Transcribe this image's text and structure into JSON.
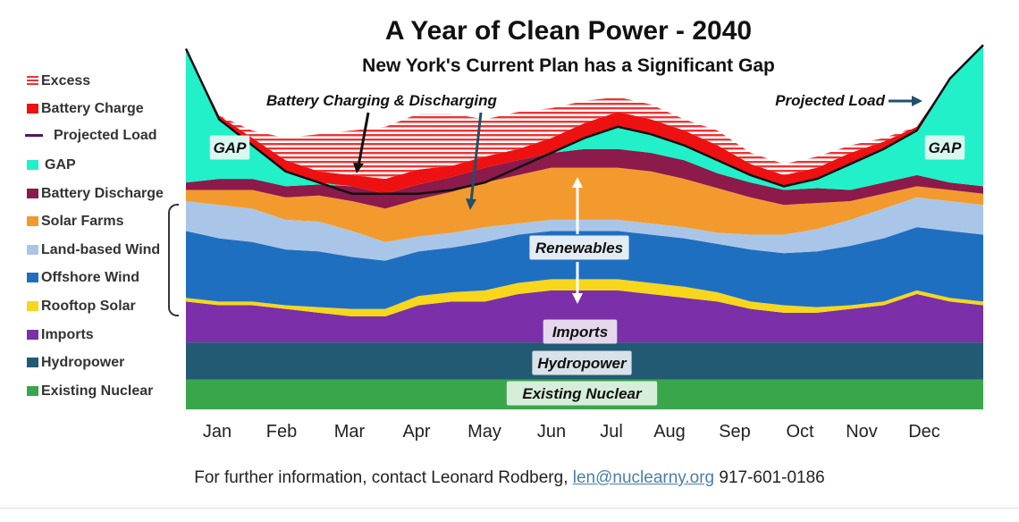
{
  "header": {
    "title": "A Year of Clean Power - 2040",
    "subtitle": "New York's Current Plan has a Significant Gap"
  },
  "legend": [
    {
      "label": "Excess",
      "color": "#ee3333",
      "style": "hatch"
    },
    {
      "label": "Battery Charge",
      "color": "#ee1111",
      "style": "box"
    },
    {
      "label": "Projected Load",
      "color": "#4a1a6a",
      "style": "line"
    },
    {
      "label": "GAP",
      "color": "#22f0c8",
      "style": "box"
    },
    {
      "label": "Battery Discharge",
      "color": "#8c1a4a",
      "style": "box"
    },
    {
      "label": "Solar Farms",
      "color": "#f39a2e",
      "style": "box"
    },
    {
      "label": "Land-based Wind",
      "color": "#a9c6e8",
      "style": "box"
    },
    {
      "label": "Offshore Wind",
      "color": "#1f6fc1",
      "style": "box"
    },
    {
      "label": "Rooftop Solar",
      "color": "#f7d61c",
      "style": "box"
    },
    {
      "label": "Imports",
      "color": "#7b2fa8",
      "style": "box"
    },
    {
      "label": "Hydropower",
      "color": "#225a73",
      "style": "box"
    },
    {
      "label": "Existing Nuclear",
      "color": "#3aa64b",
      "style": "box"
    }
  ],
  "annotations": {
    "gap_left": "GAP",
    "gap_right": "GAP",
    "battery": "Battery Charging  & Discharging",
    "projected_load": "Projected Load",
    "renewables": "Renewables",
    "imports": "Imports",
    "hydropower": "Hydropower",
    "nuclear": "Existing Nuclear"
  },
  "footer": {
    "text": "For further information, contact Leonard Rodberg,",
    "email": "len@nuclearny.org",
    "phone": "917-601-0186"
  },
  "chart_data": {
    "type": "area",
    "title": "A Year of Clean Power - 2040",
    "subtitle": "New York's Current Plan has a Significant Gap",
    "xlabel": "",
    "ylabel": "",
    "x_unit": "month of year",
    "y_unit": "relative output (0 = baseline, 100 = peak projected load)",
    "categories": [
      "Jan",
      "Feb",
      "Mar",
      "Apr",
      "May",
      "Jun",
      "Jul",
      "Aug",
      "Sep",
      "Oct",
      "Nov",
      "Dec"
    ],
    "x": [
      0,
      0.5,
      1,
      1.5,
      2,
      2.5,
      3,
      3.5,
      4,
      4.5,
      5,
      5.5,
      6,
      6.5,
      7,
      7.5,
      8,
      8.5,
      9,
      9.5,
      10,
      10.5,
      11,
      11.5,
      12
    ],
    "ylim": [
      0,
      100
    ],
    "stack_order": [
      "Existing Nuclear",
      "Hydropower",
      "Imports",
      "Rooftop Solar",
      "Offshore Wind",
      "Land-based Wind",
      "Solar Farms",
      "Battery Discharge"
    ],
    "series": [
      {
        "name": "Existing Nuclear",
        "values": [
          8,
          8,
          8,
          8,
          8,
          8,
          8,
          8,
          8,
          8,
          8,
          8,
          8,
          8,
          8,
          8,
          8,
          8,
          8,
          8,
          8,
          8,
          8,
          8,
          8
        ]
      },
      {
        "name": "Hydropower",
        "values": [
          10,
          10,
          10,
          10,
          10,
          10,
          10,
          10,
          10,
          10,
          10,
          10,
          10,
          10,
          10,
          10,
          10,
          10,
          10,
          10,
          10,
          10,
          10,
          10,
          10
        ]
      },
      {
        "name": "Imports",
        "values": [
          11,
          10,
          10,
          9,
          8,
          7,
          7,
          10,
          11,
          11,
          13,
          14,
          14,
          14,
          13,
          12,
          11,
          9,
          8,
          8,
          9,
          10,
          13,
          11,
          10
        ]
      },
      {
        "name": "Rooftop Solar",
        "values": [
          1,
          1,
          1,
          1,
          1.5,
          2,
          2,
          2.5,
          2.5,
          3,
          3,
          3,
          3,
          3,
          3,
          3,
          2.5,
          2,
          2,
          1.5,
          1,
          1,
          1,
          1,
          1
        ]
      },
      {
        "name": "Offshore Wind",
        "values": [
          18,
          17,
          16,
          15,
          15,
          14,
          13,
          12,
          12,
          13,
          13,
          13,
          13,
          13,
          13,
          13,
          13,
          14,
          14,
          15,
          16,
          17,
          17,
          18,
          18
        ]
      },
      {
        "name": "Land-based Wind",
        "values": [
          8,
          9,
          9,
          8,
          8,
          7,
          5,
          4,
          4,
          4,
          3,
          3,
          3,
          3,
          3,
          3,
          3,
          4,
          5,
          6,
          7,
          8,
          8,
          8,
          8
        ]
      },
      {
        "name": "Solar Farms",
        "values": [
          3,
          4,
          5,
          6,
          7,
          8,
          9,
          10,
          11,
          12,
          13,
          14,
          14,
          14,
          14,
          13,
          12,
          10,
          8,
          7,
          5,
          4,
          3,
          3,
          3
        ]
      },
      {
        "name": "Battery Discharge",
        "values": [
          2,
          3,
          3,
          3,
          3,
          4,
          4,
          4,
          4,
          4,
          4,
          4,
          5,
          5,
          5,
          5,
          4,
          4,
          4,
          4,
          3,
          3,
          3,
          2,
          2
        ]
      },
      {
        "name": "GAP",
        "values": [
          36,
          18,
          9,
          4,
          2,
          0,
          0,
          0,
          0,
          0,
          0,
          0,
          0,
          0,
          0,
          0,
          0,
          0,
          0,
          0,
          0,
          4,
          10,
          27,
          40
        ]
      },
      {
        "name": "Battery Charge",
        "values": [
          0,
          1,
          2,
          3,
          3,
          3,
          4,
          4,
          3,
          3,
          3,
          4,
          4,
          4,
          4,
          4,
          4,
          3,
          3,
          3,
          3,
          2,
          1,
          0,
          0
        ]
      },
      {
        "name": "Excess",
        "values": [
          0,
          0,
          2,
          6,
          10,
          12,
          14,
          15,
          14,
          10,
          10,
          8,
          6,
          4,
          4,
          3,
          4,
          3,
          3,
          3,
          2,
          1,
          0,
          0,
          0
        ]
      },
      {
        "name": "Projected Load",
        "values": [
          97,
          78,
          71,
          64,
          61,
          58,
          58,
          58,
          59,
          61,
          65,
          69,
          73,
          76,
          74,
          71,
          67,
          63,
          60,
          62,
          66,
          70,
          75,
          89,
          98
        ]
      }
    ]
  }
}
